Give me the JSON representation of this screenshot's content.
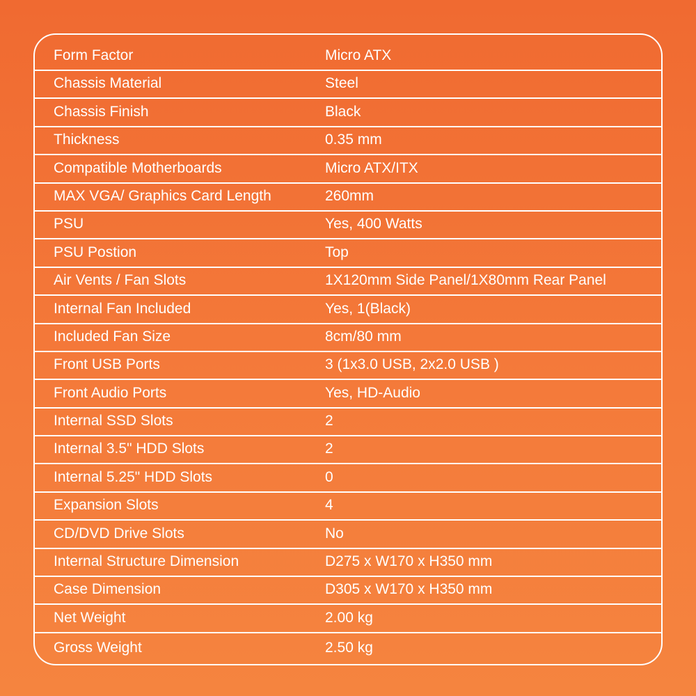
{
  "specs": [
    {
      "label": "Form Factor",
      "value": "Micro ATX"
    },
    {
      "label": "Chassis Material",
      "value": "Steel"
    },
    {
      "label": "Chassis Finish",
      "value": "Black"
    },
    {
      "label": "Thickness",
      "value": "0.35 mm"
    },
    {
      "label": "Compatible Motherboards",
      "value": "Micro ATX/ITX"
    },
    {
      "label": "MAX VGA/ Graphics Card Length",
      "value": "260mm"
    },
    {
      "label": "PSU",
      "value": "Yes, 400 Watts"
    },
    {
      "label": "PSU Postion",
      "value": "Top"
    },
    {
      "label": "Air Vents / Fan Slots",
      "value": "1X120mm Side Panel/1X80mm Rear Panel"
    },
    {
      "label": "Internal Fan Included",
      "value": "Yes, 1(Black)"
    },
    {
      "label": "Included Fan Size",
      "value": "8cm/80 mm"
    },
    {
      "label": "Front USB Ports",
      "value": "3 (1x3.0 USB, 2x2.0 USB )"
    },
    {
      "label": "Front Audio Ports",
      "value": "Yes, HD-Audio"
    },
    {
      "label": "Internal SSD Slots",
      "value": "2"
    },
    {
      "label": "Internal 3.5\" HDD Slots",
      "value": "2"
    },
    {
      "label": "Internal 5.25\" HDD Slots",
      "value": "0"
    },
    {
      "label": "Expansion Slots",
      "value": "4"
    },
    {
      "label": "CD/DVD Drive Slots",
      "value": "No"
    },
    {
      "label": "Internal Structure Dimension",
      "value": "D275 x W170 x H350 mm"
    },
    {
      "label": "Case Dimension",
      "value": "D305 x W170 x H350 mm"
    },
    {
      "label": "Net Weight",
      "value": "2.00 kg"
    },
    {
      "label": "Gross Weight",
      "value": "2.50 kg"
    }
  ]
}
